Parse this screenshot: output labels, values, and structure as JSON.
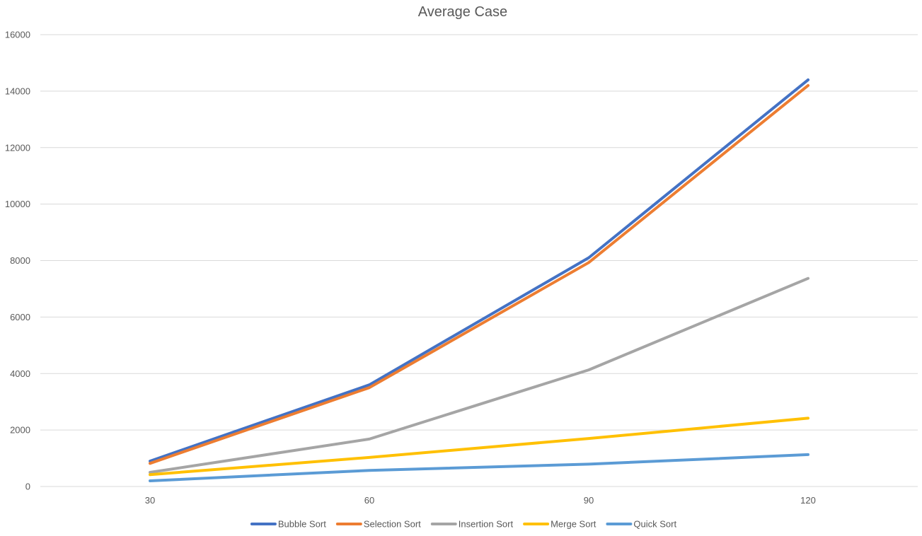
{
  "chart_data": {
    "type": "line",
    "title": "Average Case",
    "xlabel": "",
    "ylabel": "",
    "categories": [
      "30",
      "60",
      "90",
      "120"
    ],
    "x": [
      30,
      60,
      90,
      120
    ],
    "ylim": [
      0,
      16000
    ],
    "yticks": [
      0,
      2000,
      4000,
      6000,
      8000,
      10000,
      12000,
      14000,
      16000
    ],
    "ytick_labels": [
      "0",
      "2000",
      "4000",
      "6000",
      "8000",
      "10000",
      "12000",
      "14000",
      "16000"
    ],
    "grid": true,
    "legend_position": "bottom",
    "series": [
      {
        "name": "Bubble Sort",
        "values": [
          900,
          3600,
          8100,
          14400
        ],
        "color": "#4472C4"
      },
      {
        "name": "Selection Sort",
        "values": [
          820,
          3500,
          7930,
          14200
        ],
        "color": "#ED7D31"
      },
      {
        "name": "Insertion Sort",
        "values": [
          500,
          1680,
          4130,
          7370
        ],
        "color": "#A5A5A5"
      },
      {
        "name": "Merge Sort",
        "values": [
          420,
          1030,
          1700,
          2420
        ],
        "color": "#FFC000"
      },
      {
        "name": "Quick Sort",
        "values": [
          200,
          570,
          790,
          1130
        ],
        "color": "#5B9BD5"
      }
    ]
  }
}
